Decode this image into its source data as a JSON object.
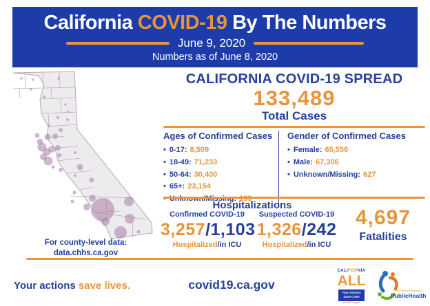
{
  "ui": {
    "bullet": "•",
    "slash": "/"
  },
  "colors": {
    "banner_blue": "#1d3caa",
    "text_blue": "#24419d",
    "orange": "#e8943c",
    "bubble_purple": "#a87ea6"
  },
  "header": {
    "title_prefix": "California",
    "title_highlight": "COVID-19",
    "title_suffix": " By The Numbers",
    "date": "June 9, 2020",
    "as_of": "Numbers as of June 8, 2020"
  },
  "spread": {
    "title": "CALIFORNIA COVID-19 SPREAD",
    "total_cases": "133,489",
    "total_label": "Total Cases"
  },
  "ages": {
    "title": "Ages of Confirmed Cases",
    "items": [
      {
        "label": "0-17:",
        "value": "8,509"
      },
      {
        "label": "18-49:",
        "value": "71,233"
      },
      {
        "label": "50-64:",
        "value": "30,400"
      },
      {
        "label": "65+:",
        "value": "23,154"
      },
      {
        "label": "Unknown/Missing:",
        "value": "193"
      }
    ]
  },
  "gender": {
    "title": "Gender of Confirmed Cases",
    "items": [
      {
        "label": "Female:",
        "value": "65,556"
      },
      {
        "label": "Male:",
        "value": "67,306"
      },
      {
        "label": "Unknown/Missing:",
        "value": "627"
      }
    ]
  },
  "hospitalizations": {
    "title": "Hospitalizations",
    "confirmed": {
      "label": "Confirmed COVID-19",
      "hospitalized": "3,257",
      "icu": "1,103",
      "sub_orange": "Hospitalized",
      "sub_blue": "/in ICU"
    },
    "suspected": {
      "label": "Suspected COVID-19",
      "hospitalized": "1,326",
      "icu": "242",
      "sub_orange": "Hospitalized",
      "sub_blue": "/in ICU"
    }
  },
  "fatalities": {
    "value": "4,697",
    "label": "Fatalities"
  },
  "map": {
    "caption_line1": "For county-level data:",
    "caption_line2": "data.chhs.ca.gov",
    "bubbles": [
      [
        17,
        12,
        1.8
      ],
      [
        34,
        14,
        1.8
      ],
      [
        71,
        12,
        1.8
      ],
      [
        31,
        28,
        1.8
      ],
      [
        50,
        39,
        2
      ],
      [
        81,
        50,
        1.8
      ],
      [
        85,
        60,
        1.5
      ],
      [
        70,
        69,
        2.2
      ],
      [
        84,
        72,
        2
      ],
      [
        57,
        81,
        2.2
      ],
      [
        74,
        87,
        3
      ],
      [
        40,
        95,
        3.5
      ],
      [
        55,
        97,
        4.5
      ],
      [
        66,
        96,
        4
      ],
      [
        44,
        104,
        4.5
      ],
      [
        47,
        112,
        6.5
      ],
      [
        54,
        119,
        5.5
      ],
      [
        61,
        115,
        5
      ],
      [
        70,
        113,
        4
      ],
      [
        72,
        124,
        3
      ],
      [
        49,
        126,
        5
      ],
      [
        56,
        132,
        6.5
      ],
      [
        63,
        141,
        2.5
      ],
      [
        74,
        145,
        3
      ],
      [
        95,
        120,
        2
      ],
      [
        102,
        141,
        4.5
      ],
      [
        119,
        160,
        3.5
      ],
      [
        95,
        153,
        2
      ],
      [
        94,
        178,
        2.5
      ],
      [
        120,
        186,
        5
      ],
      [
        91,
        191,
        2.5
      ],
      [
        112,
        199,
        5
      ],
      [
        135,
        203,
        17
      ],
      [
        173,
        191,
        7
      ],
      [
        139,
        220,
        6
      ],
      [
        174,
        216,
        7
      ],
      [
        161,
        236,
        9
      ],
      [
        187,
        235,
        2.5
      ]
    ]
  },
  "footer": {
    "tagline_blue": "Your actions ",
    "tagline_orange": "save lives.",
    "url": "covid19.ca.gov"
  },
  "logos": {
    "ca_all": {
      "word_parts": [
        "CALI",
        "FOR",
        "NIA"
      ],
      "all": "ALL",
      "box_lines": [
        "Your Actions",
        "Save Lives"
      ],
      "url": "covid19.ca.gov"
    },
    "cdph": {
      "dept": "California Department of",
      "name": "PublicHealth"
    }
  }
}
